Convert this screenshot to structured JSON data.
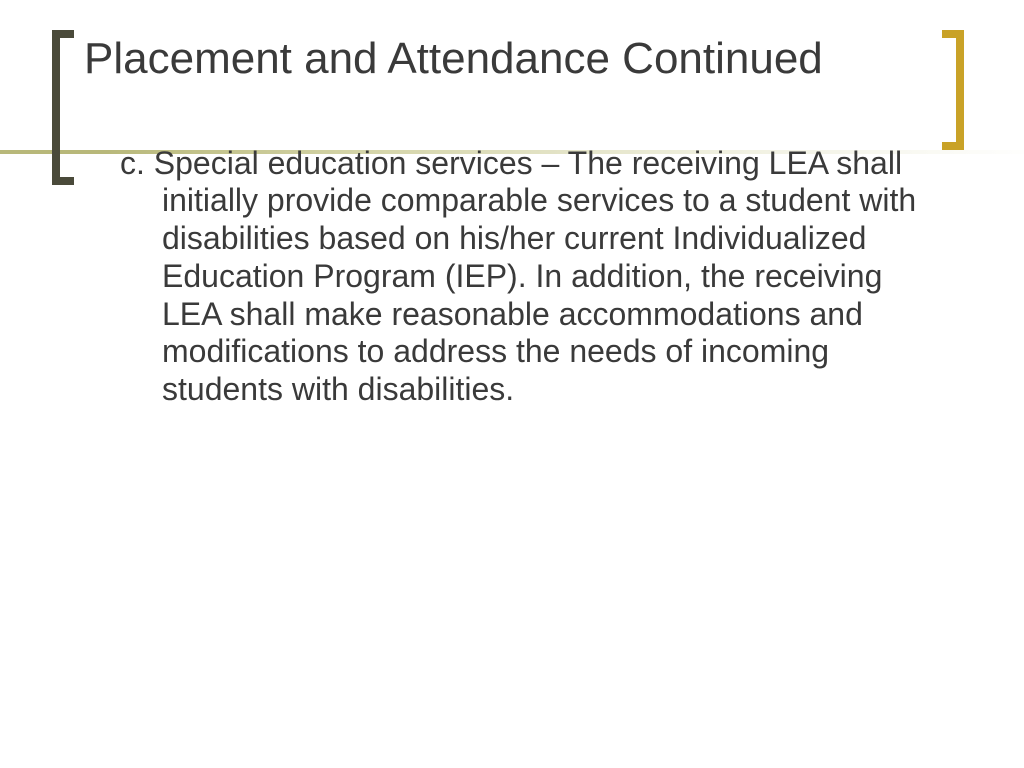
{
  "slide": {
    "title": "Placement and Attendance Continued",
    "body": "c. Special education services – The receiving LEA shall initially provide comparable services to a student with disabilities based on his/her current Individualized Education Program (IEP).  In addition, the receiving LEA shall make reasonable accommodations and modifications to address the needs of incoming students with disabilities."
  },
  "style": {
    "background_color": "#ffffff",
    "title_color": "#3a3a3a",
    "title_fontsize": 44,
    "body_color": "#3a3a3a",
    "body_fontsize": 32,
    "left_bracket_color": "#4a4a3a",
    "right_bracket_color": "#c9a227",
    "line_gradient_start": "#b8b87a",
    "line_gradient_end": "#ffffff",
    "font_family": "Arial"
  }
}
